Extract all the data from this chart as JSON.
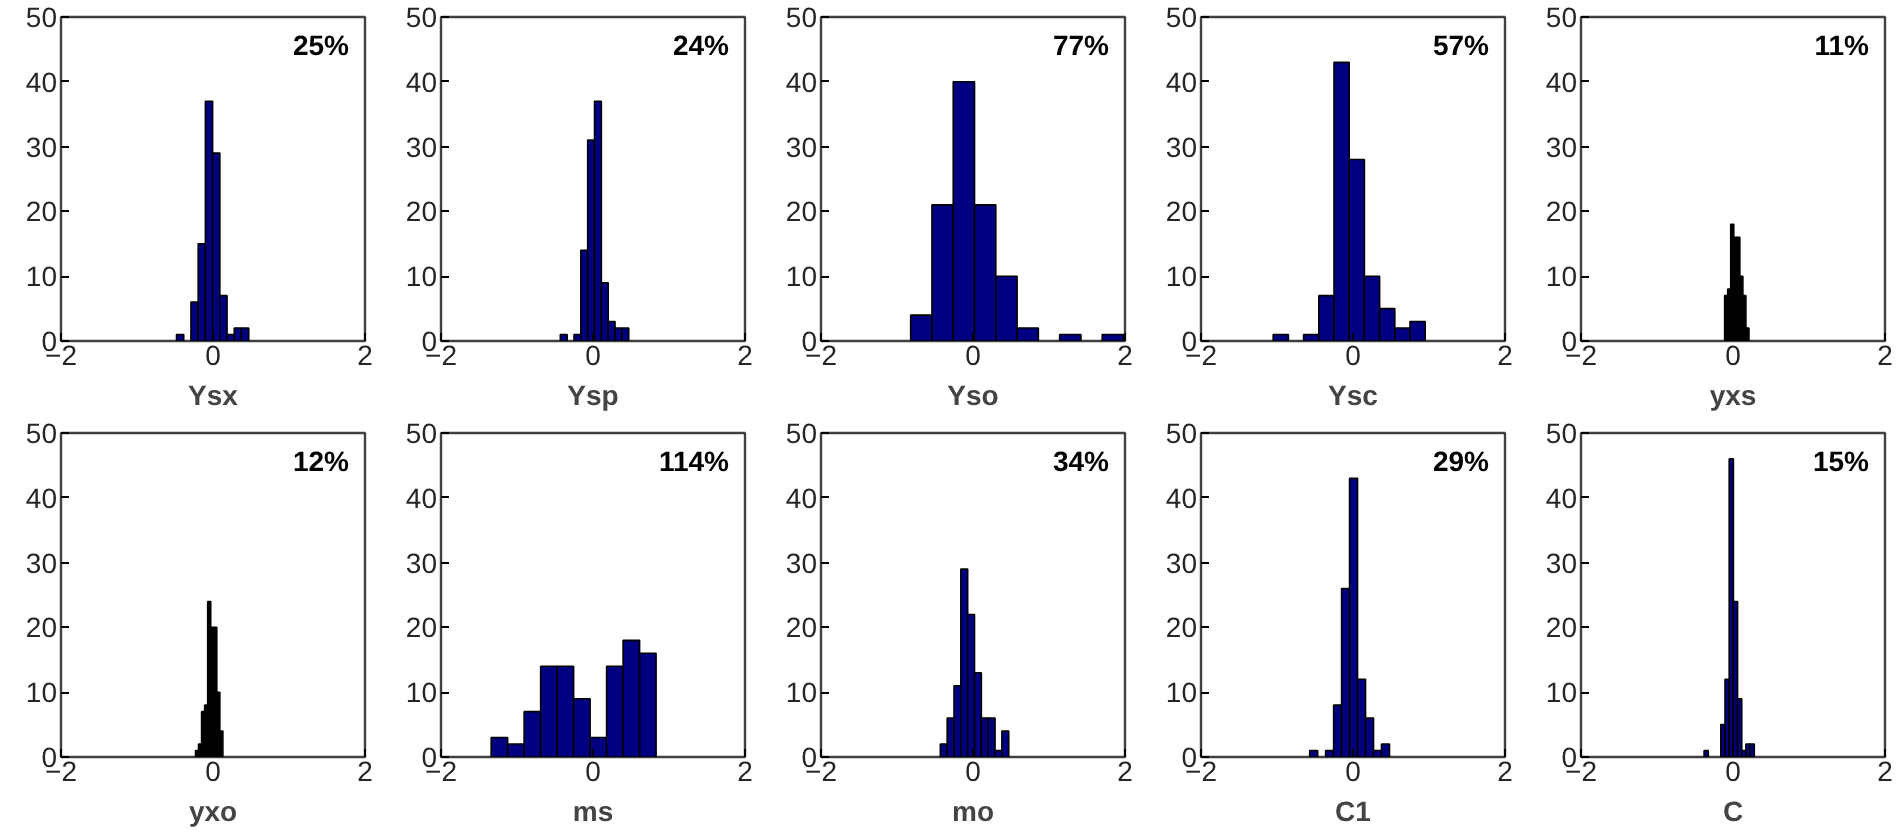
{
  "chart_data": [
    {
      "type": "histogram",
      "xlabel": "Ysx",
      "annotations": [
        "25%"
      ],
      "color": "#000080",
      "bins": [
        -0.48,
        -0.385,
        -0.29,
        -0.195,
        -0.1,
        -0.005,
        0.09,
        0.185,
        0.28,
        0.375,
        0.47
      ],
      "values": [
        1,
        0,
        6,
        15,
        37,
        29,
        7,
        1,
        2,
        2
      ],
      "xlim": [
        -2,
        2
      ],
      "ylim": [
        0,
        50
      ],
      "xticks": [
        -2,
        0,
        2
      ],
      "yticks": [
        0,
        10,
        20,
        30,
        40,
        50
      ]
    },
    {
      "type": "histogram",
      "xlabel": "Ysp",
      "annotations": [
        "24%"
      ],
      "color": "#000080",
      "bins": [
        -0.43,
        -0.34,
        -0.25,
        -0.16,
        -0.07,
        0.02,
        0.11,
        0.2,
        0.29,
        0.38,
        0.47
      ],
      "values": [
        1,
        0,
        1,
        14,
        31,
        37,
        9,
        3,
        2,
        2
      ],
      "xlim": [
        -2,
        2
      ],
      "ylim": [
        0,
        50
      ],
      "xticks": [
        -2,
        0,
        2
      ],
      "yticks": [
        0,
        10,
        20,
        30,
        40,
        50
      ]
    },
    {
      "type": "histogram",
      "xlabel": "Yso",
      "annotations": [
        "77%"
      ],
      "color": "#000080",
      "bins": [
        -0.82,
        -0.54,
        -0.26,
        0.02,
        0.3,
        0.58,
        0.86,
        1.14,
        1.42,
        1.7,
        1.98
      ],
      "values": [
        4,
        21,
        40,
        21,
        10,
        2,
        0,
        1,
        0,
        1
      ],
      "xlim": [
        -2,
        2
      ],
      "ylim": [
        0,
        50
      ],
      "xticks": [
        -2,
        0,
        2
      ],
      "yticks": [
        0,
        10,
        20,
        30,
        40,
        50
      ]
    },
    {
      "type": "histogram",
      "xlabel": "Ysc",
      "annotations": [
        "57%"
      ],
      "color": "#000080",
      "bins": [
        -1.05,
        -0.85,
        -0.65,
        -0.45,
        -0.25,
        -0.05,
        0.15,
        0.35,
        0.55,
        0.75,
        0.95
      ],
      "values": [
        1,
        0,
        1,
        7,
        43,
        28,
        10,
        5,
        2,
        3
      ],
      "xlim": [
        -2,
        2
      ],
      "ylim": [
        0,
        50
      ],
      "xticks": [
        -2,
        0,
        2
      ],
      "yticks": [
        0,
        10,
        20,
        30,
        40,
        50
      ]
    },
    {
      "type": "histogram",
      "xlabel": "yxs",
      "annotations": [
        "11%"
      ],
      "color": "#000000",
      "bins": [
        -0.11,
        -0.07,
        -0.03,
        0.01,
        0.05,
        0.09,
        0.13,
        0.17,
        0.21
      ],
      "values": [
        7,
        8,
        18,
        16,
        16,
        10,
        7,
        2
      ],
      "xlim": [
        -2,
        2
      ],
      "ylim": [
        0,
        50
      ],
      "xticks": [
        -2,
        0,
        2
      ],
      "yticks": [
        0,
        10,
        20,
        30,
        40,
        50
      ]
    },
    {
      "type": "histogram",
      "xlabel": "yxo",
      "annotations": [
        "12%"
      ],
      "color": "#000000",
      "bins": [
        -0.23,
        -0.19,
        -0.15,
        -0.11,
        -0.07,
        -0.03,
        0.01,
        0.05,
        0.09,
        0.13
      ],
      "values": [
        1,
        2,
        7,
        8,
        24,
        20,
        20,
        10,
        4
      ],
      "xlim": [
        -2,
        2
      ],
      "ylim": [
        0,
        50
      ],
      "xticks": [
        -2,
        0,
        2
      ],
      "yticks": [
        0,
        10,
        20,
        30,
        40,
        50
      ]
    },
    {
      "type": "histogram",
      "xlabel": "ms",
      "annotations": [
        "114%"
      ],
      "color": "#000080",
      "bins": [
        -1.34,
        -1.123,
        -0.906,
        -0.689,
        -0.472,
        -0.255,
        -0.038,
        0.179,
        0.396,
        0.613,
        0.83
      ],
      "values": [
        3,
        2,
        7,
        14,
        14,
        9,
        3,
        14,
        18,
        16
      ],
      "xlim": [
        -2,
        2
      ],
      "ylim": [
        0,
        50
      ],
      "xticks": [
        -2,
        0,
        2
      ],
      "yticks": [
        0,
        10,
        20,
        30,
        40,
        50
      ]
    },
    {
      "type": "histogram",
      "xlabel": "mo",
      "annotations": [
        "34%"
      ],
      "color": "#000080",
      "bins": [
        -0.43,
        -0.34,
        -0.25,
        -0.16,
        -0.07,
        0.02,
        0.11,
        0.2,
        0.29,
        0.38,
        0.47
      ],
      "values": [
        2,
        6,
        11,
        29,
        22,
        13,
        6,
        6,
        1,
        4
      ],
      "xlim": [
        -2,
        2
      ],
      "ylim": [
        0,
        50
      ],
      "xticks": [
        -2,
        0,
        2
      ],
      "yticks": [
        0,
        10,
        20,
        30,
        40,
        50
      ]
    },
    {
      "type": "histogram",
      "xlabel": "C1",
      "annotations": [
        "29%"
      ],
      "color": "#000080",
      "bins": [
        -0.57,
        -0.465,
        -0.36,
        -0.255,
        -0.15,
        -0.045,
        0.06,
        0.165,
        0.27,
        0.375,
        0.48
      ],
      "values": [
        1,
        0,
        1,
        8,
        26,
        43,
        12,
        6,
        1,
        2
      ],
      "xlim": [
        -2,
        2
      ],
      "ylim": [
        0,
        50
      ],
      "xticks": [
        -2,
        0,
        2
      ],
      "yticks": [
        0,
        10,
        20,
        30,
        40,
        50
      ]
    },
    {
      "type": "histogram",
      "xlabel": "C",
      "annotations": [
        "15%"
      ],
      "color": "#000080",
      "bins": [
        -0.38,
        -0.325,
        -0.27,
        -0.215,
        -0.16,
        -0.105,
        -0.05,
        0.005,
        0.06,
        0.115,
        0.17,
        0.225,
        0.28
      ],
      "values": [
        1,
        0,
        0,
        0,
        5,
        12,
        46,
        24,
        9,
        1,
        2,
        2
      ],
      "xlim": [
        -2,
        2
      ],
      "ylim": [
        0,
        50
      ],
      "xticks": [
        -2,
        0,
        2
      ],
      "yticks": [
        0,
        10,
        20,
        30,
        40,
        50
      ]
    }
  ]
}
